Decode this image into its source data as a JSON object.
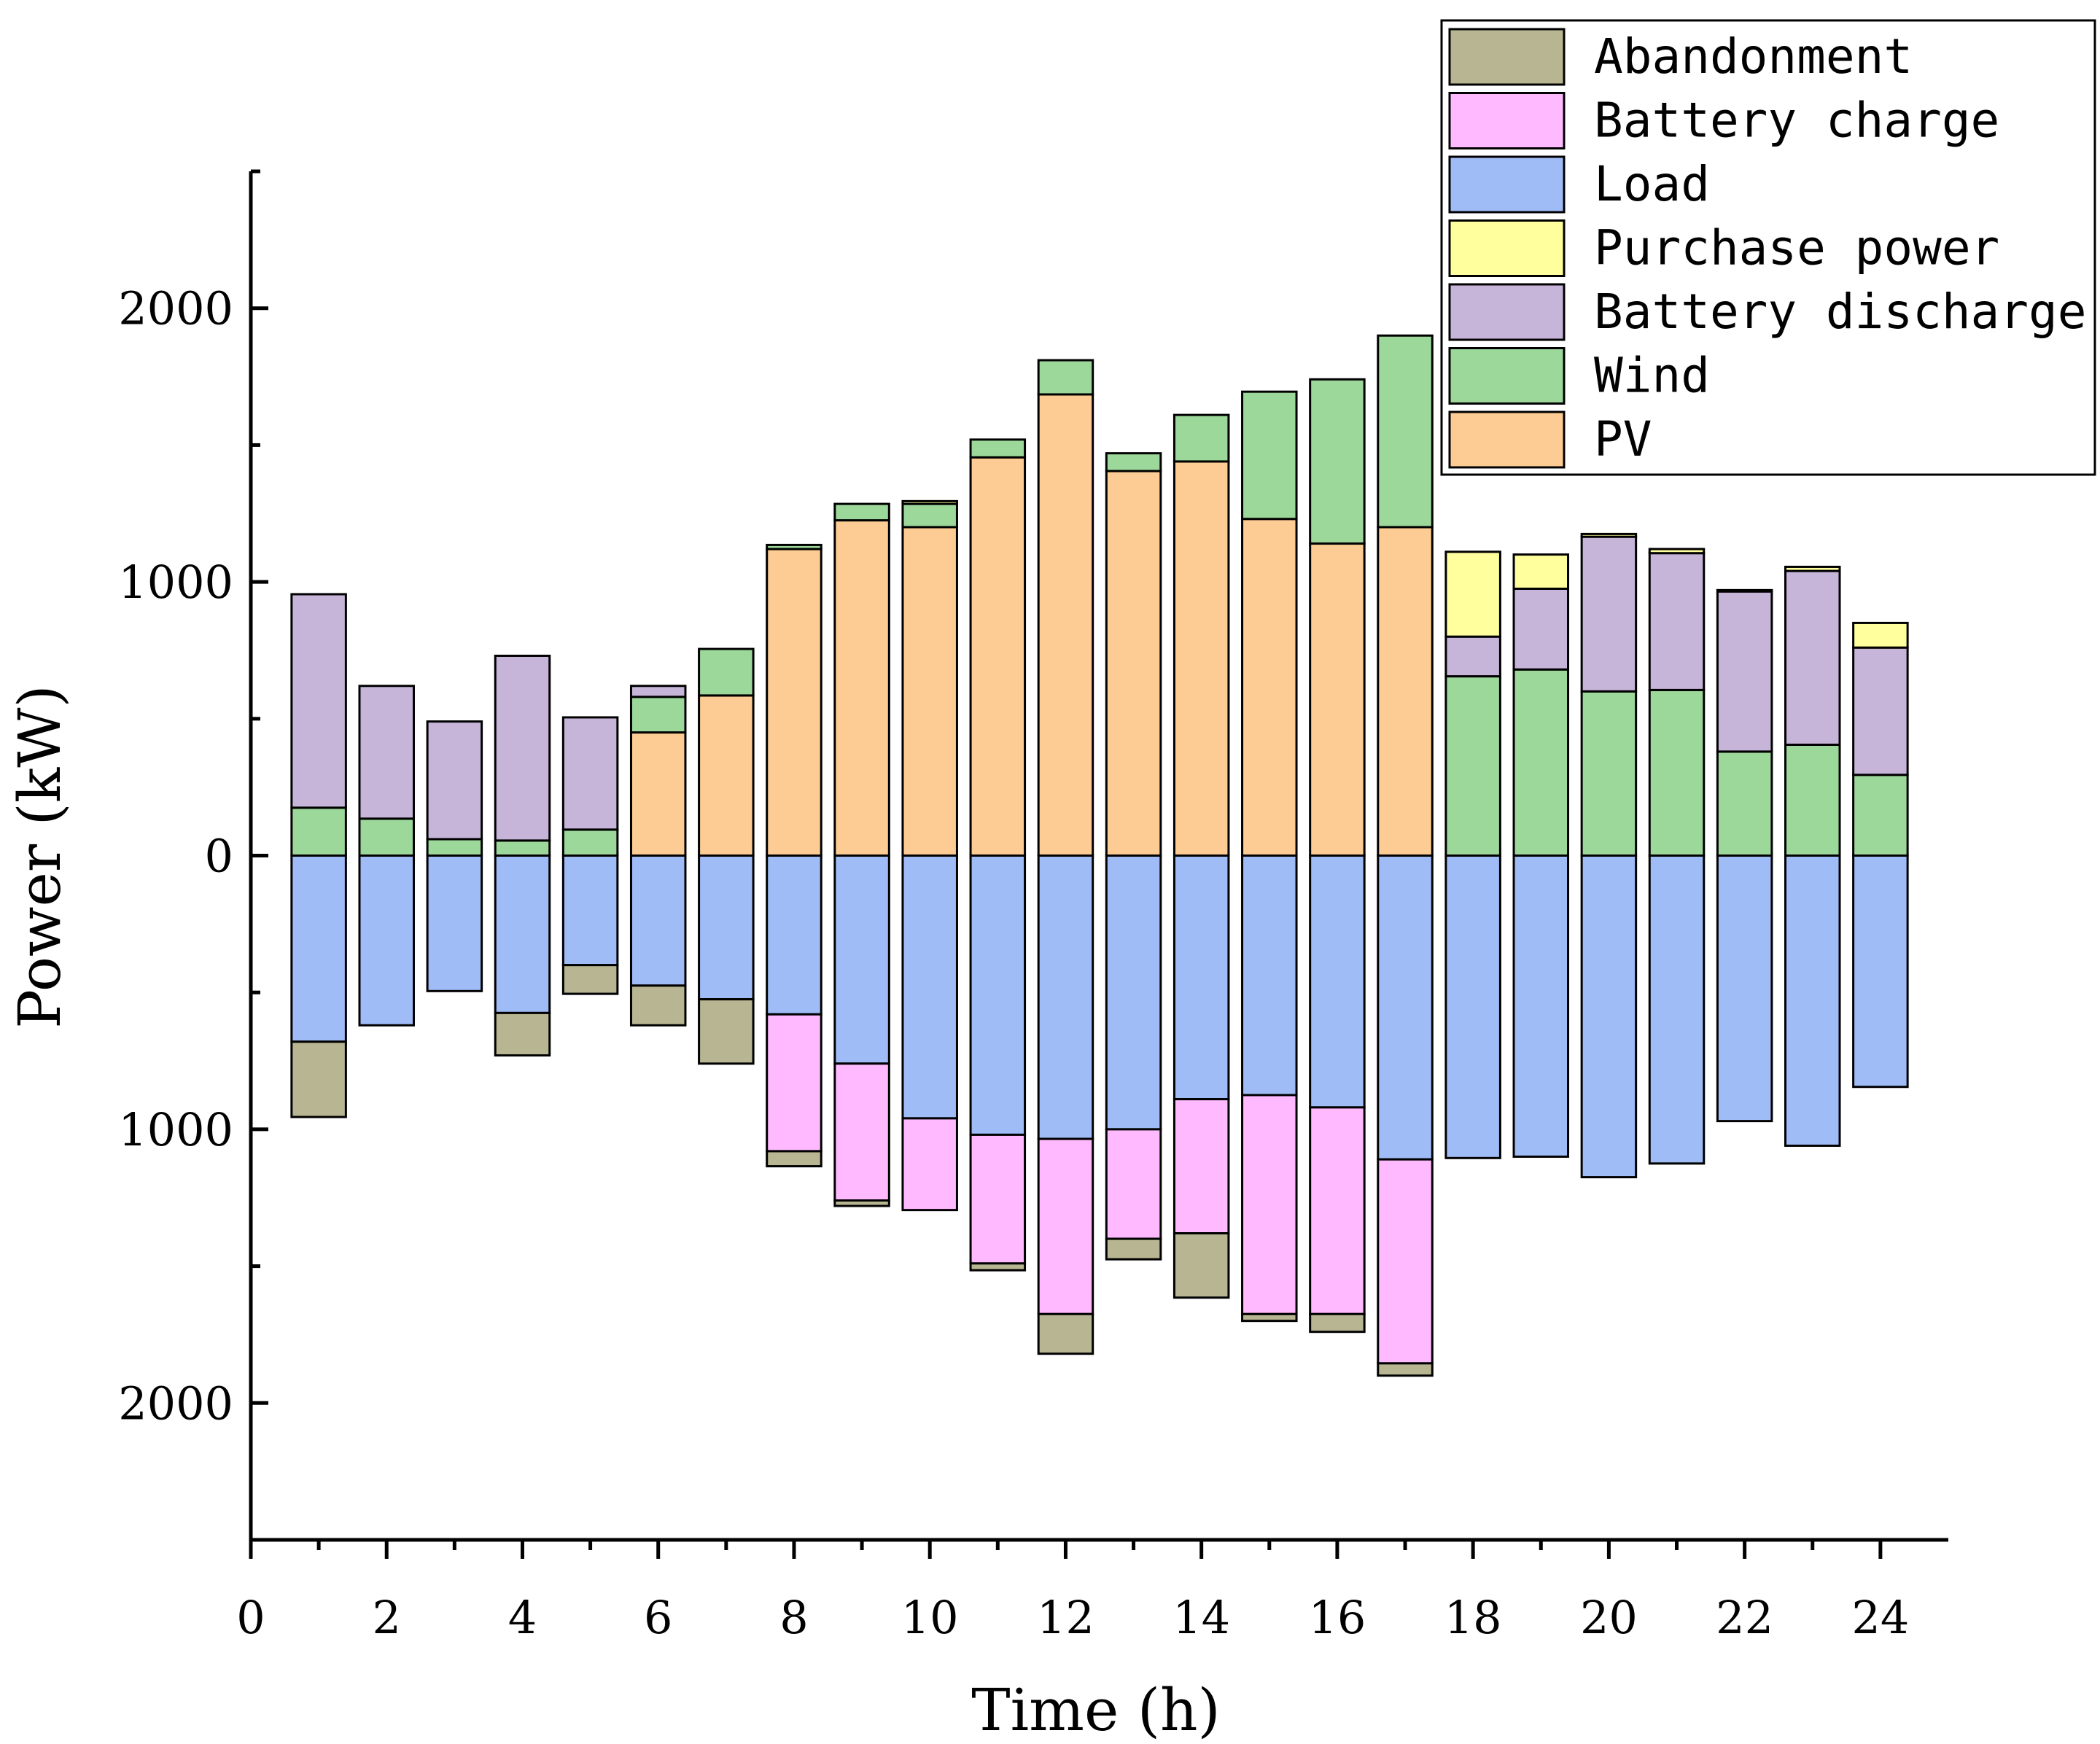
{
  "chart_data": {
    "type": "bar",
    "stacked": true,
    "xlabel": "Time (h)",
    "ylabel": "Power (kW)",
    "xlim": [
      0,
      25
    ],
    "ylim": [
      -2500,
      2500
    ],
    "x_ticks": [
      0,
      2,
      4,
      6,
      8,
      10,
      12,
      14,
      16,
      18,
      20,
      22,
      24
    ],
    "y_ticks": [
      {
        "value": 2000,
        "label": "2000"
      },
      {
        "value": 1000,
        "label": "1000"
      },
      {
        "value": 0,
        "label": "0"
      },
      {
        "value": -1000,
        "label": "1000"
      },
      {
        "value": -2000,
        "label": "2000"
      }
    ],
    "x": [
      1,
      2,
      3,
      4,
      5,
      6,
      7,
      8,
      9,
      10,
      11,
      12,
      13,
      14,
      15,
      16,
      17,
      18,
      19,
      20,
      21,
      22,
      23,
      24
    ],
    "legend_position": "top-right",
    "legend": [
      {
        "name": "Abandonment",
        "color": "#b8b592"
      },
      {
        "name": "Battery charge",
        "color": "#ffbaff"
      },
      {
        "name": "Load",
        "color": "#a0bcf7"
      },
      {
        "name": "Purchase power",
        "color": "#ffff9e"
      },
      {
        "name": "Battery discharge",
        "color": "#c6b5d9"
      },
      {
        "name": "Wind",
        "color": "#9dd89b"
      },
      {
        "name": "PV",
        "color": "#fccc94"
      }
    ],
    "positive_series": [
      {
        "name": "PV",
        "color": "#fccc94",
        "values": [
          0,
          0,
          0,
          0,
          0,
          450,
          585,
          1120,
          1225,
          1200,
          1455,
          1685,
          1405,
          1440,
          1230,
          1140,
          1200,
          0,
          0,
          0,
          0,
          0,
          0,
          0
        ]
      },
      {
        "name": "Wind",
        "color": "#9dd89b",
        "values": [
          175,
          135,
          60,
          55,
          95,
          130,
          170,
          15,
          60,
          85,
          65,
          125,
          65,
          170,
          465,
          600,
          700,
          655,
          680,
          600,
          605,
          380,
          405,
          295
        ]
      },
      {
        "name": "Battery discharge",
        "color": "#c6b5d9",
        "values": [
          780,
          485,
          430,
          675,
          410,
          40,
          0,
          0,
          0,
          0,
          0,
          0,
          0,
          0,
          0,
          0,
          0,
          145,
          295,
          565,
          500,
          585,
          635,
          465
        ]
      },
      {
        "name": "Purchase power",
        "color": "#ffff9e",
        "values": [
          0,
          0,
          0,
          0,
          0,
          0,
          0,
          0,
          0,
          10,
          0,
          0,
          0,
          0,
          0,
          0,
          0,
          310,
          125,
          10,
          15,
          5,
          15,
          90
        ]
      }
    ],
    "negative_series": [
      {
        "name": "Load",
        "color": "#a0bcf7",
        "values": [
          680,
          620,
          495,
          575,
          400,
          475,
          525,
          580,
          760,
          960,
          1020,
          1035,
          1000,
          890,
          875,
          920,
          1110,
          1105,
          1100,
          1175,
          1125,
          970,
          1060,
          845
        ]
      },
      {
        "name": "Battery charge",
        "color": "#ffbaff",
        "values": [
          0,
          0,
          0,
          0,
          0,
          0,
          0,
          500,
          500,
          335,
          470,
          640,
          400,
          490,
          800,
          755,
          745,
          0,
          0,
          0,
          0,
          0,
          0,
          0
        ]
      },
      {
        "name": "Abandonment",
        "color": "#b8b592",
        "values": [
          275,
          0,
          0,
          155,
          105,
          145,
          235,
          55,
          20,
          0,
          25,
          145,
          75,
          235,
          25,
          65,
          45,
          0,
          0,
          0,
          0,
          0,
          0,
          0
        ]
      }
    ]
  }
}
